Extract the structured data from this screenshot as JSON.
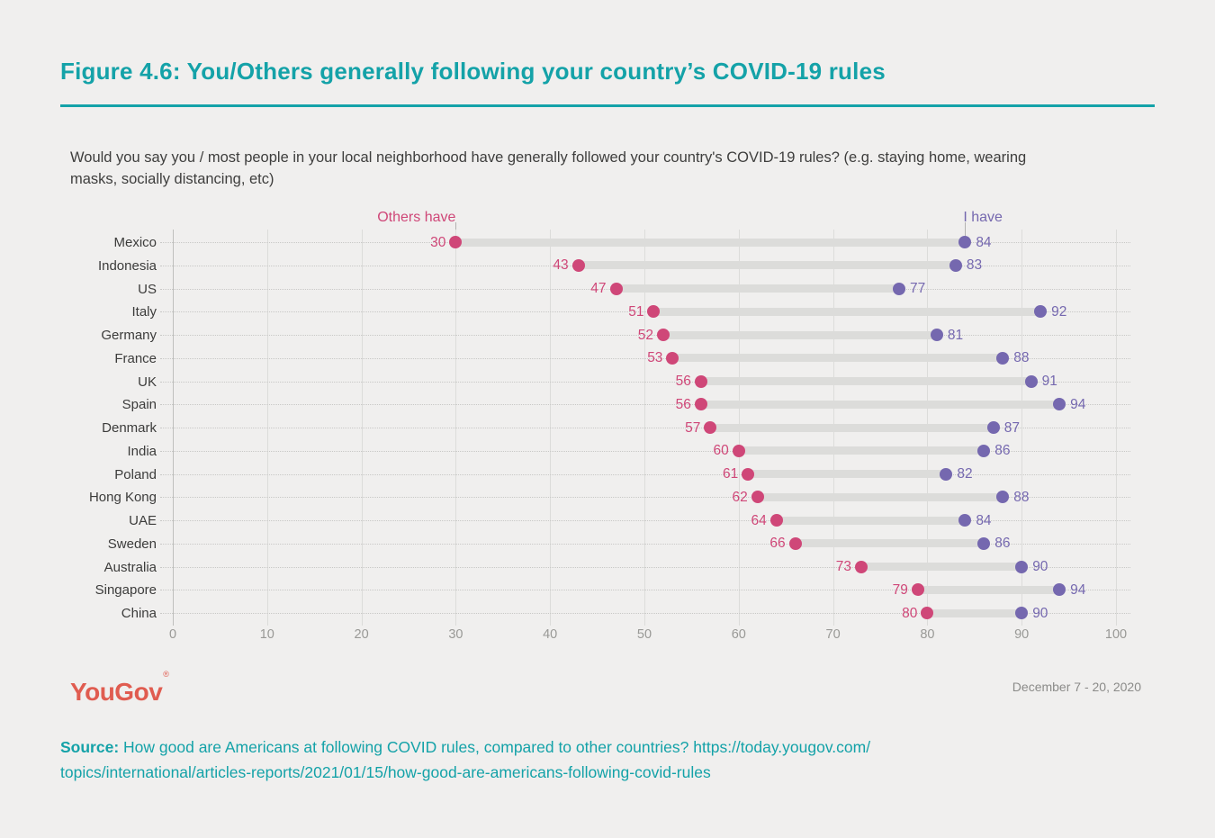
{
  "page": {
    "title": "Figure 4.6: You/Others generally following your country’s COVID-19 rules",
    "question_line1": "Would you say you / most people in your local neighborhood have generally followed your country's COVID-19 rules? (e.g. staying home, wearing",
    "question_line2": "masks, socially distancing, etc)",
    "logo_text": "YouGov",
    "logo_mark": "®",
    "date_range": "December 7 - 20, 2020",
    "source_label": "Source:",
    "source_line1": "How good are Americans at following COVID rules, compared to other countries? https://today.yougov.com/",
    "source_line2": "topics/international/articles-reports/2021/01/15/how-good-are-americans-following-covid-rules"
  },
  "colors": {
    "background": "#f0efee",
    "accent_teal": "#14a2a8",
    "others_pink": "#cf4778",
    "ihave_purple": "#7568af",
    "bar_gray": "#dcdcda",
    "logo_coral": "#e05c50",
    "axis_gray": "#999996"
  },
  "chart_data": {
    "type": "dumbbell",
    "orientation": "horizontal",
    "title": "You/Others generally following your country’s COVID-19 rules",
    "categories": [
      "Mexico",
      "Indonesia",
      "US",
      "Italy",
      "Germany",
      "France",
      "UK",
      "Spain",
      "Denmark",
      "India",
      "Poland",
      "Hong Kong",
      "UAE",
      "Sweden",
      "Australia",
      "Singapore",
      "China"
    ],
    "series": [
      {
        "name": "Others have",
        "color": "#cf4778",
        "values": [
          30,
          43,
          47,
          51,
          52,
          53,
          56,
          56,
          57,
          60,
          61,
          62,
          64,
          66,
          73,
          79,
          80
        ]
      },
      {
        "name": "I have",
        "color": "#7568af",
        "values": [
          84,
          83,
          77,
          92,
          81,
          88,
          91,
          94,
          87,
          86,
          82,
          88,
          84,
          86,
          90,
          94,
          90
        ]
      }
    ],
    "xlim": [
      0,
      100
    ],
    "x_ticks": [
      0,
      10,
      20,
      30,
      40,
      50,
      60,
      70,
      80,
      90,
      100
    ],
    "grid": {
      "vertical": "solid",
      "horizontal": "dotted"
    },
    "legend_position": "annotations-above-first-row"
  }
}
